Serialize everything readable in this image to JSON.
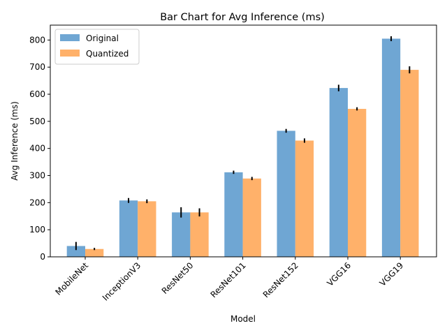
{
  "chart_data": {
    "type": "bar",
    "title": "Bar Chart for Avg Inference (ms)",
    "xlabel": "Model",
    "ylabel": "Avg Inference (ms)",
    "categories": [
      "MobileNet",
      "InceptionV3",
      "ResNet50",
      "ResNet101",
      "ResNet152",
      "VGG16",
      "VGG19"
    ],
    "series": [
      {
        "name": "Original",
        "color": "#4b90c8",
        "values": [
          40,
          208,
          164,
          312,
          465,
          623,
          805
        ],
        "errors": [
          15,
          9,
          19,
          6,
          7,
          12,
          9
        ]
      },
      {
        "name": "Quantized",
        "color": "#ff9d45",
        "values": [
          29,
          205,
          164,
          289,
          429,
          546,
          690
        ],
        "errors": [
          4,
          7,
          15,
          6,
          8,
          6,
          13
        ]
      }
    ],
    "ylim": [
      0,
      855
    ],
    "yticks": [
      0,
      100,
      200,
      300,
      400,
      500,
      600,
      700,
      800
    ],
    "grid": false,
    "legend_position": "top-left",
    "error_color": "#000000"
  }
}
